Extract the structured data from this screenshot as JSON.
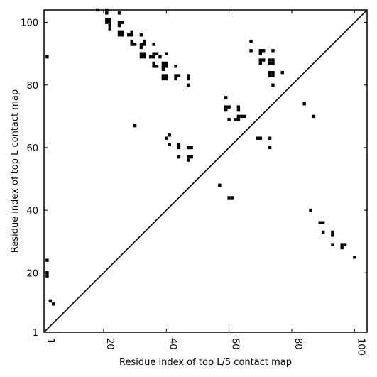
{
  "chart_data": {
    "type": "scatter",
    "xlabel": "Residue index of top L/5 contact map",
    "ylabel": "Residue index of top L contact map",
    "xlim": [
      1,
      104
    ],
    "ylim": [
      1,
      104
    ],
    "xticks": [
      1,
      20,
      40,
      60,
      80,
      100
    ],
    "yticks": [
      1,
      20,
      40,
      60,
      80,
      100
    ],
    "diagonal": true,
    "marker": "square",
    "colors": {
      "marker": "#000000",
      "axis": "#000000",
      "background": "#ffffff"
    },
    "upper_points": [
      [
        18,
        104
      ],
      [
        21,
        104
      ],
      [
        21,
        103
      ],
      [
        25,
        103
      ],
      [
        21,
        101
      ],
      [
        22,
        101
      ],
      [
        21,
        100
      ],
      [
        22,
        100
      ],
      [
        22,
        99
      ],
      [
        22,
        98
      ],
      [
        25,
        100
      ],
      [
        26,
        100
      ],
      [
        25,
        99
      ],
      [
        25,
        97
      ],
      [
        26,
        97
      ],
      [
        25,
        96
      ],
      [
        26,
        96
      ],
      [
        28,
        96
      ],
      [
        29,
        97
      ],
      [
        29,
        96
      ],
      [
        32,
        96
      ],
      [
        29,
        94
      ],
      [
        29,
        93
      ],
      [
        30,
        93
      ],
      [
        32,
        93
      ],
      [
        33,
        94
      ],
      [
        33,
        93
      ],
      [
        32,
        92
      ],
      [
        36,
        93
      ],
      [
        32,
        90
      ],
      [
        33,
        90
      ],
      [
        32,
        89
      ],
      [
        33,
        89
      ],
      [
        35,
        89
      ],
      [
        36,
        90
      ],
      [
        37,
        90
      ],
      [
        36,
        89
      ],
      [
        38,
        89
      ],
      [
        40,
        90
      ],
      [
        36,
        87
      ],
      [
        36,
        86
      ],
      [
        37,
        86
      ],
      [
        39,
        87
      ],
      [
        40,
        87
      ],
      [
        39,
        86
      ],
      [
        39,
        85
      ],
      [
        40,
        86
      ],
      [
        39,
        83
      ],
      [
        40,
        83
      ],
      [
        39,
        82
      ],
      [
        40,
        82
      ],
      [
        43,
        86
      ],
      [
        43,
        83
      ],
      [
        44,
        83
      ],
      [
        43,
        82
      ],
      [
        47,
        83
      ],
      [
        47,
        82
      ],
      [
        47,
        80
      ],
      [
        67,
        94
      ],
      [
        67,
        91
      ],
      [
        70,
        91
      ],
      [
        71,
        91
      ],
      [
        70,
        90
      ],
      [
        74,
        91
      ],
      [
        70,
        88
      ],
      [
        71,
        88
      ],
      [
        70,
        87
      ],
      [
        73,
        88
      ],
      [
        74,
        88
      ],
      [
        73,
        87
      ],
      [
        74,
        87
      ],
      [
        77,
        84
      ],
      [
        73,
        84
      ],
      [
        74,
        84
      ],
      [
        73,
        83
      ],
      [
        74,
        83
      ],
      [
        74,
        80
      ],
      [
        59,
        76
      ],
      [
        59,
        73
      ],
      [
        60,
        73
      ],
      [
        59,
        72
      ],
      [
        63,
        73
      ],
      [
        63,
        72
      ],
      [
        63,
        70
      ],
      [
        64,
        70
      ],
      [
        65,
        70
      ],
      [
        60,
        69
      ],
      [
        62,
        69
      ],
      [
        63,
        69
      ],
      [
        84,
        74
      ],
      [
        87,
        70
      ],
      [
        30,
        67
      ],
      [
        41,
        64
      ],
      [
        40,
        63
      ],
      [
        41,
        61
      ],
      [
        44,
        61
      ],
      [
        44,
        60
      ],
      [
        47,
        60
      ],
      [
        48,
        60
      ],
      [
        44,
        57
      ],
      [
        47,
        57
      ],
      [
        48,
        57
      ],
      [
        47,
        56
      ],
      [
        69,
        63
      ],
      [
        70,
        63
      ],
      [
        73,
        63
      ],
      [
        73,
        60
      ]
    ],
    "lower_points": [
      [
        2,
        89
      ],
      [
        2,
        24
      ],
      [
        2,
        20
      ],
      [
        2,
        19
      ],
      [
        3,
        11
      ],
      [
        4,
        10
      ],
      [
        57,
        48
      ],
      [
        60,
        44
      ],
      [
        61,
        44
      ],
      [
        86,
        40
      ],
      [
        89,
        36
      ],
      [
        90,
        36
      ],
      [
        90,
        33
      ],
      [
        93,
        33
      ],
      [
        93,
        32
      ],
      [
        93,
        29
      ],
      [
        96,
        29
      ],
      [
        97,
        29
      ],
      [
        96,
        28
      ],
      [
        100,
        25
      ]
    ]
  }
}
